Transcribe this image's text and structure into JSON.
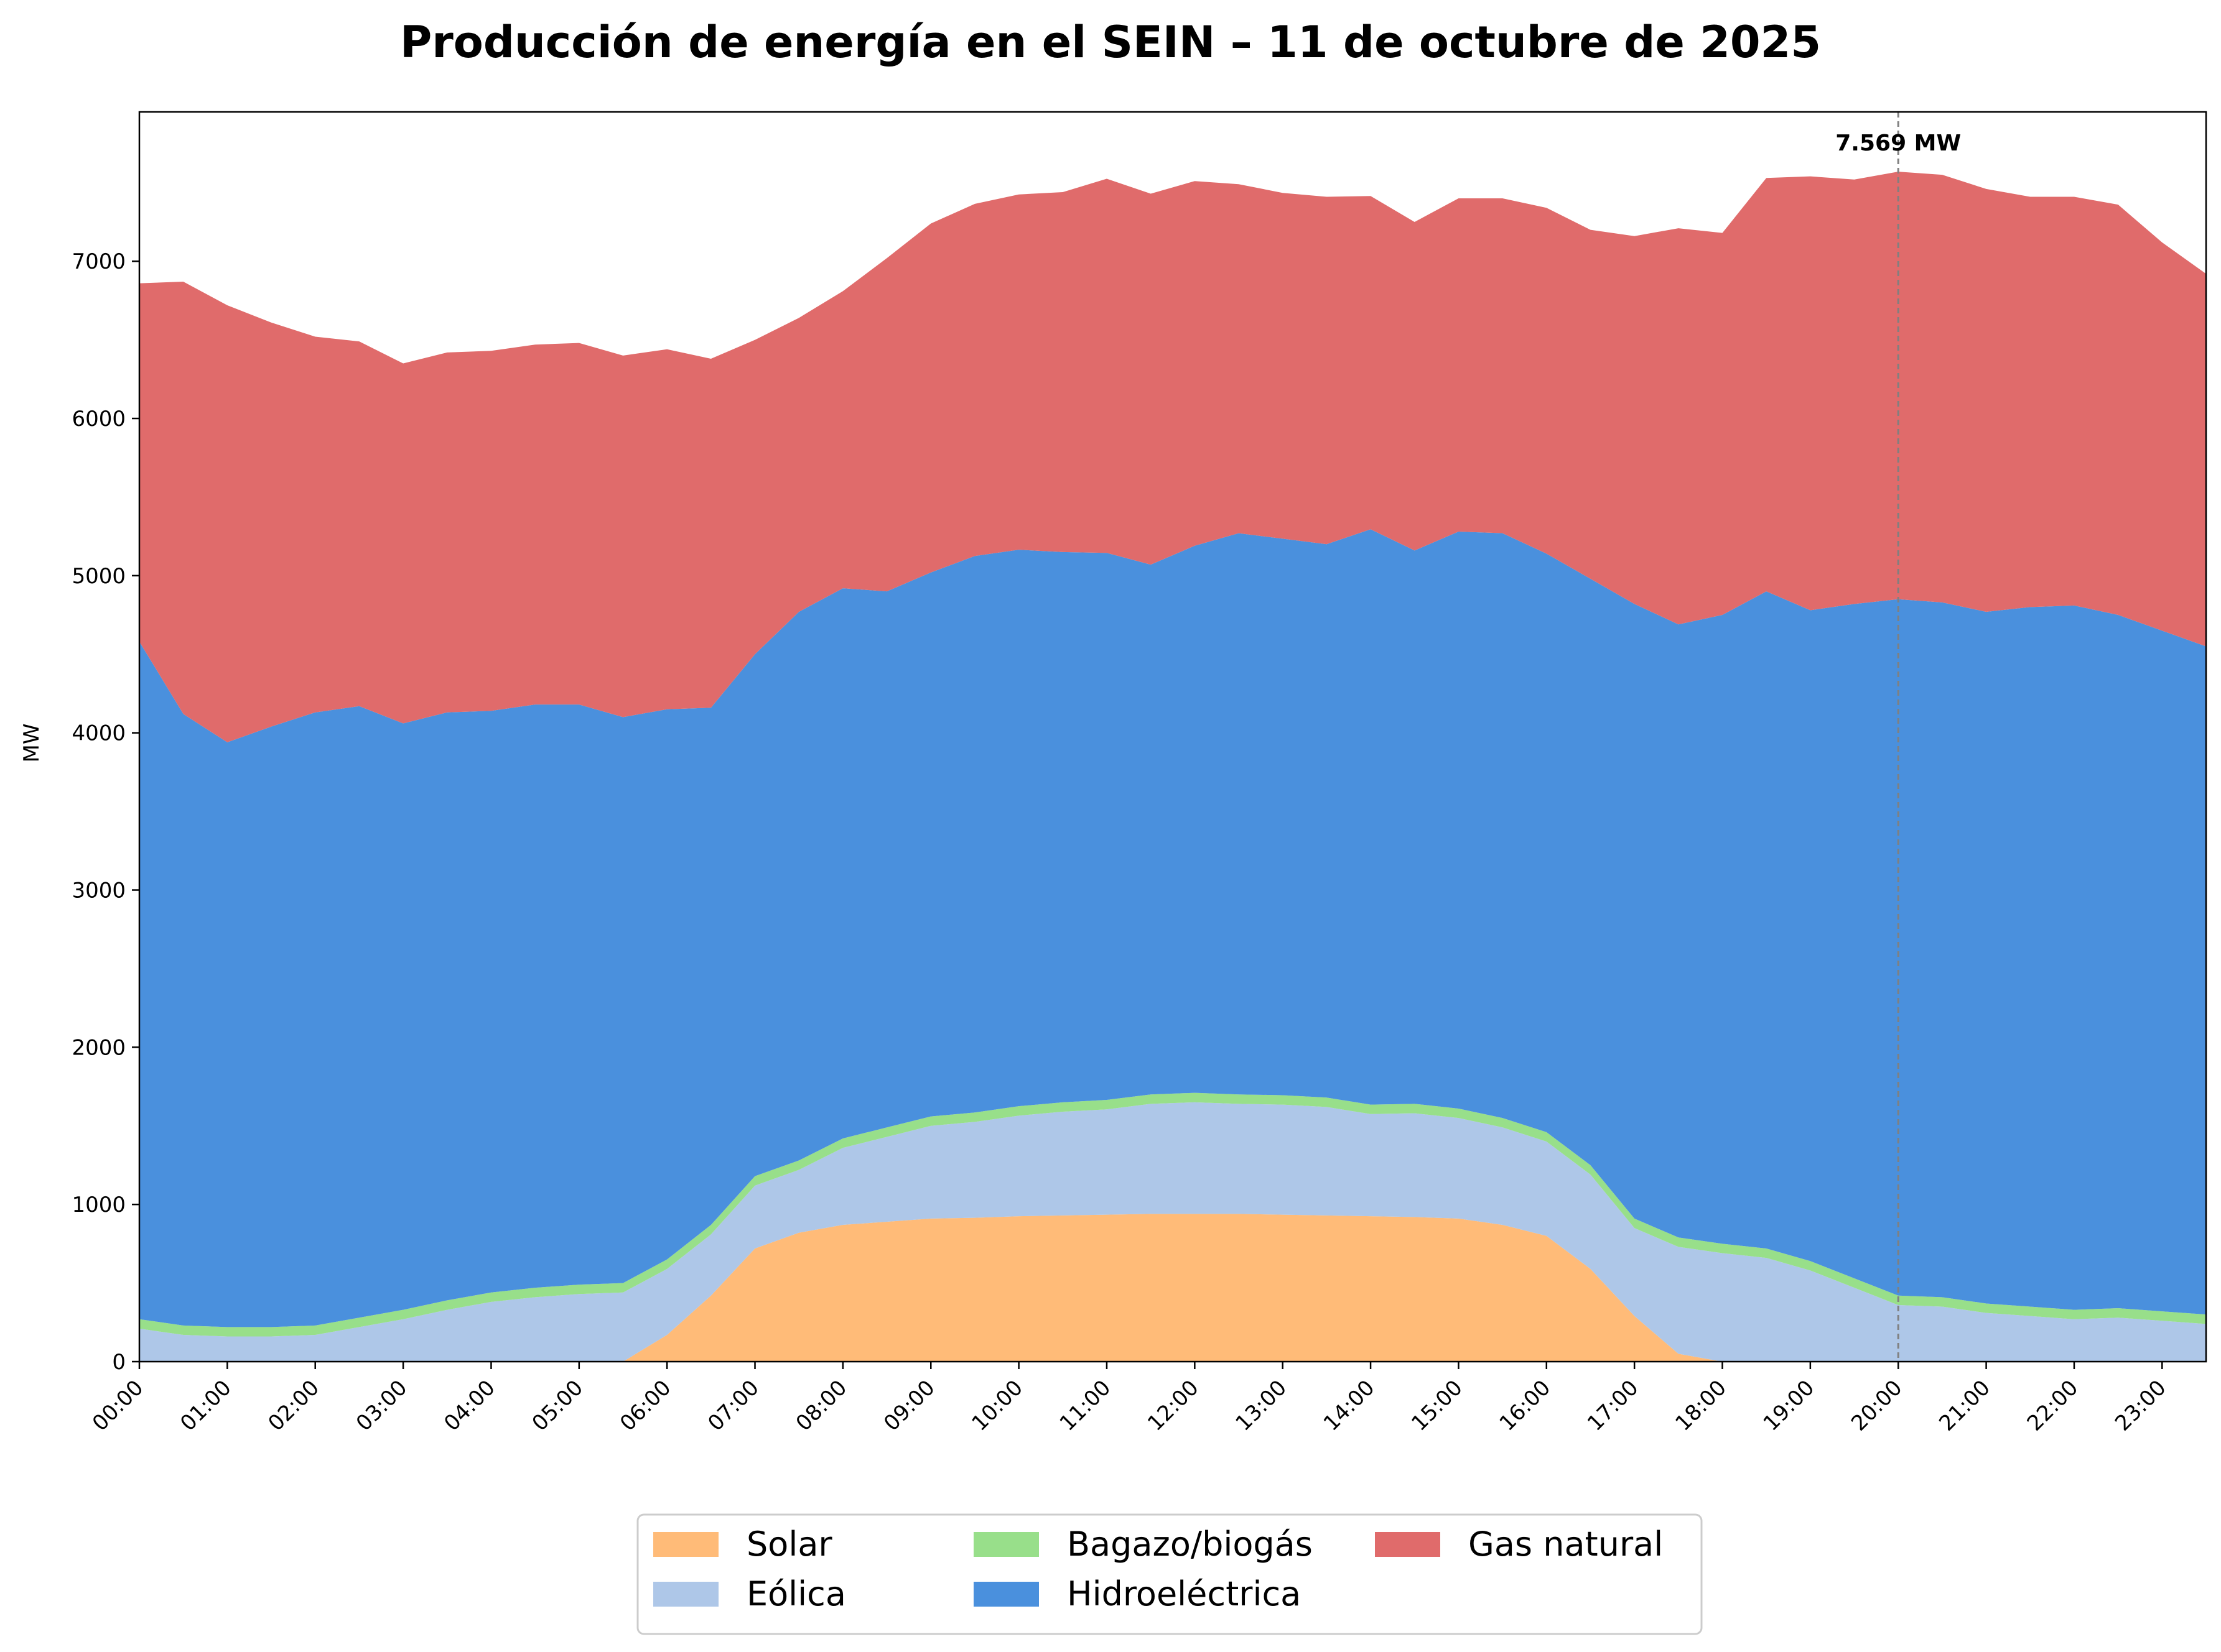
{
  "chart_data": {
    "type": "area",
    "stacked": true,
    "title": "Producción de energía en el SEIN – 11 de octubre de 2025",
    "xlabel": "",
    "ylabel": "MW",
    "ylim": [
      0,
      7950
    ],
    "yticks": [
      0,
      1000,
      2000,
      3000,
      4000,
      5000,
      6000,
      7000
    ],
    "x": [
      "00:00",
      "00:30",
      "01:00",
      "01:30",
      "02:00",
      "02:30",
      "03:00",
      "03:30",
      "04:00",
      "04:30",
      "05:00",
      "05:30",
      "06:00",
      "06:30",
      "07:00",
      "07:30",
      "08:00",
      "08:30",
      "09:00",
      "09:30",
      "10:00",
      "10:30",
      "11:00",
      "11:30",
      "12:00",
      "12:30",
      "13:00",
      "13:30",
      "14:00",
      "14:30",
      "15:00",
      "15:30",
      "16:00",
      "16:30",
      "17:00",
      "17:30",
      "18:00",
      "18:30",
      "19:00",
      "19:30",
      "20:00",
      "20:30",
      "21:00",
      "21:30",
      "22:00",
      "22:30",
      "23:00",
      "23:30"
    ],
    "xticklabels": [
      "00:00",
      "01:00",
      "02:00",
      "03:00",
      "04:00",
      "05:00",
      "06:00",
      "07:00",
      "08:00",
      "09:00",
      "10:00",
      "11:00",
      "12:00",
      "13:00",
      "14:00",
      "15:00",
      "16:00",
      "17:00",
      "18:00",
      "19:00",
      "20:00",
      "21:00",
      "22:00",
      "23:00"
    ],
    "series": [
      {
        "name": "Solar",
        "color": "#ffbb78",
        "values": [
          0,
          0,
          0,
          0,
          0,
          0,
          0,
          0,
          0,
          0,
          0,
          0,
          170,
          420,
          720,
          820,
          870,
          890,
          910,
          915,
          925,
          930,
          935,
          940,
          940,
          940,
          935,
          930,
          925,
          920,
          910,
          870,
          800,
          590,
          290,
          50,
          0,
          0,
          0,
          0,
          0,
          0,
          0,
          0,
          0,
          0,
          0,
          0
        ]
      },
      {
        "name": "Eólica",
        "color": "#aec7e8",
        "values": [
          210,
          170,
          160,
          160,
          170,
          220,
          270,
          330,
          380,
          410,
          430,
          440,
          420,
          390,
          400,
          400,
          490,
          540,
          590,
          610,
          640,
          660,
          670,
          700,
          710,
          700,
          700,
          690,
          650,
          660,
          640,
          620,
          600,
          600,
          560,
          680,
          690,
          660,
          580,
          470,
          360,
          350,
          310,
          290,
          270,
          280,
          260,
          240
        ]
      },
      {
        "name": "Bagazo/biogás",
        "color": "#98df8a",
        "values": [
          60,
          60,
          60,
          60,
          60,
          60,
          60,
          60,
          60,
          60,
          60,
          60,
          60,
          60,
          60,
          60,
          60,
          60,
          60,
          60,
          60,
          60,
          60,
          60,
          60,
          60,
          60,
          60,
          60,
          60,
          60,
          60,
          60,
          60,
          60,
          60,
          60,
          60,
          60,
          60,
          60,
          60,
          60,
          60,
          60,
          60,
          60,
          60
        ]
      },
      {
        "name": "Hidroeléctrica",
        "color": "#4a90dd",
        "values": [
          4310,
          3890,
          3720,
          3820,
          3900,
          3890,
          3730,
          3740,
          3700,
          3710,
          3690,
          3600,
          3500,
          3290,
          3320,
          3490,
          3500,
          3410,
          3460,
          3540,
          3540,
          3500,
          3480,
          3370,
          3480,
          3570,
          3540,
          3520,
          3660,
          3520,
          3670,
          3720,
          3680,
          3730,
          3910,
          3900,
          4000,
          4180,
          4140,
          4290,
          4430,
          4420,
          4400,
          4450,
          4480,
          4410,
          4330,
          4250
        ]
      },
      {
        "name": "Gas natural",
        "color": "#e06b6b",
        "values": [
          2280,
          2750,
          2780,
          2570,
          2390,
          2320,
          2290,
          2290,
          2290,
          2290,
          2300,
          2300,
          2290,
          2220,
          2000,
          1870,
          1890,
          2120,
          2220,
          2240,
          2260,
          2290,
          2380,
          2360,
          2320,
          2220,
          2200,
          2210,
          2120,
          2090,
          2120,
          2130,
          2200,
          2220,
          2340,
          2520,
          2430,
          2630,
          2760,
          2700,
          2720,
          2720,
          2690,
          2610,
          2600,
          2610,
          2470,
          2370
        ]
      }
    ],
    "annotation": {
      "x": "20:00",
      "label": "7.569 MW"
    },
    "grid": false,
    "legend": "bottom-center"
  }
}
